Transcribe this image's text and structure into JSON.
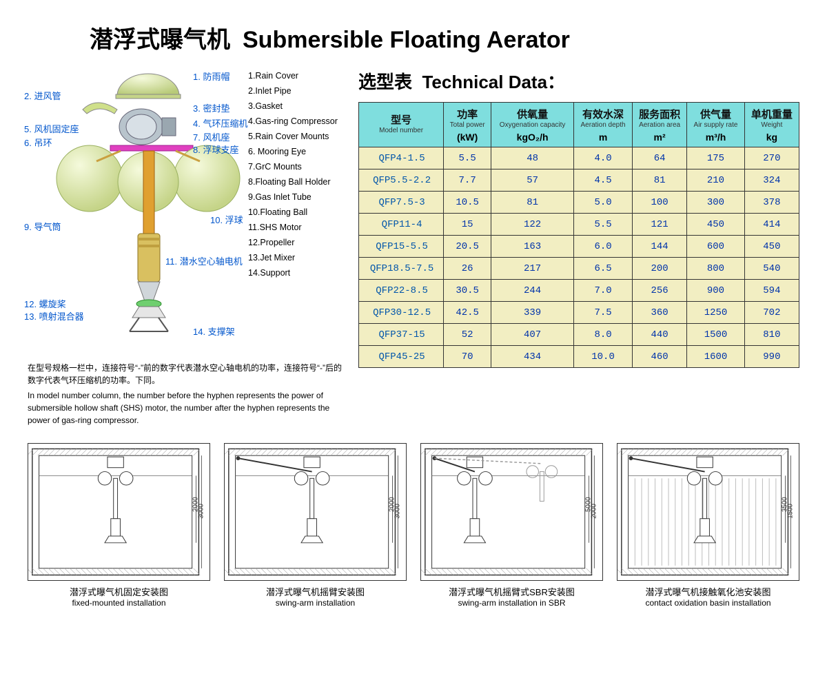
{
  "title": {
    "cn": "潜浮式曝气机",
    "en": "Submersible Floating Aerator"
  },
  "tech_title": {
    "cn": "选型表",
    "en": "Technical Data："
  },
  "callouts_cn": [
    {
      "n": "1",
      "txt": "防雨帽"
    },
    {
      "n": "2",
      "txt": "进风管"
    },
    {
      "n": "3",
      "txt": "密封垫"
    },
    {
      "n": "4",
      "txt": "气环压缩机"
    },
    {
      "n": "5",
      "txt": "风机固定座"
    },
    {
      "n": "6",
      "txt": "吊环"
    },
    {
      "n": "7",
      "txt": "风机座"
    },
    {
      "n": "8",
      "txt": "浮球支座"
    },
    {
      "n": "9",
      "txt": "导气筒"
    },
    {
      "n": "10",
      "txt": "浮球"
    },
    {
      "n": "11",
      "txt": "潜水空心轴电机"
    },
    {
      "n": "12",
      "txt": "螺旋桨"
    },
    {
      "n": "13",
      "txt": "喷射混合器"
    },
    {
      "n": "14",
      "txt": "支撑架"
    }
  ],
  "callouts_en": [
    "1.Rain Cover",
    "2.Inlet Pipe",
    "3.Gasket",
    "4.Gas-ring Compressor",
    "5.Rain Cover Mounts",
    "6. Mooring Eye",
    "7.GrC Mounts",
    "8.Floating Ball Holder",
    "9.Gas Inlet Tube",
    "10.Floating Ball",
    "11.SHS Motor",
    "12.Propeller",
    "13.Jet Mixer",
    "14.Support"
  ],
  "note_cn": "在型号规格一栏中，连接符号“-”前的数字代表潜水空心轴电机的功率，连接符号“-”后的数字代表气环压缩机的功率。下同。",
  "note_en": "In model number column, the number before the hyphen represents the power of submersible hollow shaft (SHS) motor, the number after the hyphen represents the power of gas-ring compressor.",
  "table": {
    "header_bg": "#7fdede",
    "row_bg": "#f2eec2",
    "border_color": "#333333",
    "text_color": "#0033aa",
    "columns": [
      {
        "cn": "型号",
        "en": "Model number",
        "unit": ""
      },
      {
        "cn": "功率",
        "en": "Total power",
        "unit": "(kW)"
      },
      {
        "cn": "供氧量",
        "en": "Oxygenation capacity",
        "unit": "kgO₂/h"
      },
      {
        "cn": "有效水深",
        "en": "Aeration depth",
        "unit": "m"
      },
      {
        "cn": "服务面积",
        "en": "Aeration area",
        "unit": "m²"
      },
      {
        "cn": "供气量",
        "en": "Air supply rate",
        "unit": "m³/h"
      },
      {
        "cn": "单机重量",
        "en": "Weight",
        "unit": "kg"
      }
    ],
    "rows": [
      [
        "QFP4-1.5",
        "5.5",
        "48",
        "4.0",
        "64",
        "175",
        "270"
      ],
      [
        "QFP5.5-2.2",
        "7.7",
        "57",
        "4.5",
        "81",
        "210",
        "324"
      ],
      [
        "QFP7.5-3",
        "10.5",
        "81",
        "5.0",
        "100",
        "300",
        "378"
      ],
      [
        "QFP11-4",
        "15",
        "122",
        "5.5",
        "121",
        "450",
        "414"
      ],
      [
        "QFP15-5.5",
        "20.5",
        "163",
        "6.0",
        "144",
        "600",
        "450"
      ],
      [
        "QFP18.5-7.5",
        "26",
        "217",
        "6.5",
        "200",
        "800",
        "540"
      ],
      [
        "QFP22-8.5",
        "30.5",
        "244",
        "7.0",
        "256",
        "900",
        "594"
      ],
      [
        "QFP30-12.5",
        "42.5",
        "339",
        "7.5",
        "360",
        "1250",
        "702"
      ],
      [
        "QFP37-15",
        "52",
        "407",
        "8.0",
        "440",
        "1500",
        "810"
      ],
      [
        "QFP45-25",
        "70",
        "434",
        "10.0",
        "460",
        "1600",
        "990"
      ]
    ]
  },
  "installs": [
    {
      "cn": "潜浮式曝气机固定安装图",
      "en": "fixed-mounted installation",
      "dims": [
        "2000",
        "3000"
      ]
    },
    {
      "cn": "潜浮式曝气机摇臂安装图",
      "en": "swing-arm  installation",
      "dims": [
        "2000",
        "3000"
      ]
    },
    {
      "cn": "潜浮式曝气机摇臂式SBR安装图",
      "en": "swing-arm installation in SBR",
      "dims": [
        "5000",
        "2000"
      ]
    },
    {
      "cn": "潜浮式曝气机接触氧化池安装图",
      "en": "contact oxidation basin installation",
      "dims": [
        "3500",
        "1500"
      ]
    }
  ],
  "colors": {
    "ball": "#e8f0c0",
    "ball_shade": "#c5d488",
    "motor": "#d9c060",
    "pipe": "#e0a030",
    "propeller": "#6fcf6f",
    "callout": "#0055cc"
  }
}
